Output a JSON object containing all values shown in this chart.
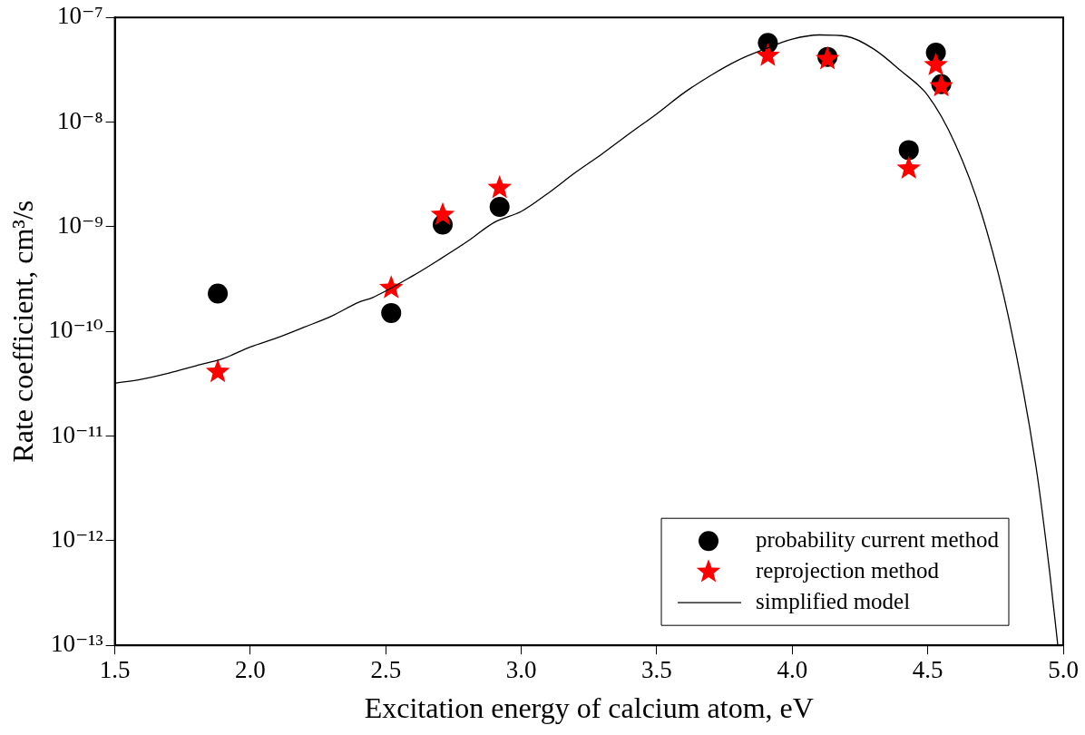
{
  "chart_data": {
    "type": "scatter",
    "xlabel": "Excitation energy of calcium atom, eV",
    "ylabel": "Rate coefficient, cm³/s",
    "log": "y",
    "grid": false,
    "legend": "bottom right",
    "xlim": [
      1.5,
      5.0
    ],
    "xticks": [
      {
        "value": 1.5,
        "label": "1.5"
      },
      {
        "value": 2.0,
        "label": "2.0"
      },
      {
        "value": 2.5,
        "label": "2.5"
      },
      {
        "value": 3.0,
        "label": "3.0"
      },
      {
        "value": 3.5,
        "label": "3.5"
      },
      {
        "value": 4.0,
        "label": "4.0"
      },
      {
        "value": 4.5,
        "label": "4.5"
      },
      {
        "value": 5.0,
        "label": "5.0"
      }
    ],
    "ylim": [
      1e-13,
      1e-07
    ],
    "yticks": [
      {
        "value": 1e-13,
        "label": "10⁻¹³"
      },
      {
        "value": 1e-12,
        "label": "10⁻¹²"
      },
      {
        "value": 1e-11,
        "label": "10⁻¹¹"
      },
      {
        "value": 1e-10,
        "label": "10⁻¹⁰"
      },
      {
        "value": 1e-09,
        "label": "10⁻⁹"
      },
      {
        "value": 1e-08,
        "label": "10⁻⁸"
      },
      {
        "value": 1e-07,
        "label": "10⁻⁷"
      }
    ],
    "series": [
      {
        "name": "probability current method",
        "type": "scatter",
        "marker": "circle",
        "color": "#000000",
        "x": [
          1.88,
          2.52,
          2.71,
          2.92,
          3.91,
          4.13,
          4.43,
          4.53,
          4.55
        ],
        "values": [
          2.3e-10,
          1.5e-10,
          1.05e-09,
          1.55e-09,
          5.7e-08,
          4.2e-08,
          5.4e-09,
          4.6e-08,
          2.3e-08
        ]
      },
      {
        "name": "reprojection method",
        "type": "scatter",
        "marker": "star",
        "color": "#ff0000",
        "x": [
          1.88,
          2.52,
          2.71,
          2.92,
          3.91,
          4.13,
          4.43,
          4.53,
          4.55
        ],
        "values": [
          4.1e-11,
          2.6e-10,
          1.3e-09,
          2.35e-09,
          4.3e-08,
          4e-08,
          3.6e-09,
          3.5e-08,
          2.2e-08
        ]
      },
      {
        "name": "simplified model",
        "type": "line",
        "marker": "none",
        "line_style": "solid",
        "color": "#000000",
        "x": [
          1.5,
          1.6,
          1.7,
          1.8,
          1.9,
          2.0,
          2.1,
          2.2,
          2.3,
          2.4,
          2.45,
          2.6,
          2.7,
          2.8,
          2.9,
          3.0,
          3.1,
          3.2,
          3.3,
          3.4,
          3.5,
          3.6,
          3.7,
          3.8,
          3.9,
          4.0,
          4.1,
          4.2,
          4.3,
          4.4,
          4.5,
          4.6,
          4.7,
          4.8,
          4.9,
          4.95,
          4.98
        ],
        "values": [
          3.2e-11,
          3.5e-11,
          4e-11,
          4.7e-11,
          5.5e-11,
          7.1e-11,
          8.7e-11,
          1.1e-10,
          1.4e-10,
          1.9e-10,
          2.1e-10,
          3.4e-10,
          4.9e-10,
          7.2e-10,
          1.1e-09,
          1.4e-09,
          2.1e-09,
          3.3e-09,
          5e-09,
          7.8e-09,
          1.2e-08,
          1.9e-08,
          2.8e-08,
          3.9e-08,
          5e-08,
          6.2e-08,
          6.8e-08,
          6.6e-08,
          5e-08,
          3.1e-08,
          1.8e-08,
          6.3e-09,
          1.3e-09,
          1.3e-10,
          5e-12,
          5e-13,
          1e-13
        ]
      }
    ]
  }
}
